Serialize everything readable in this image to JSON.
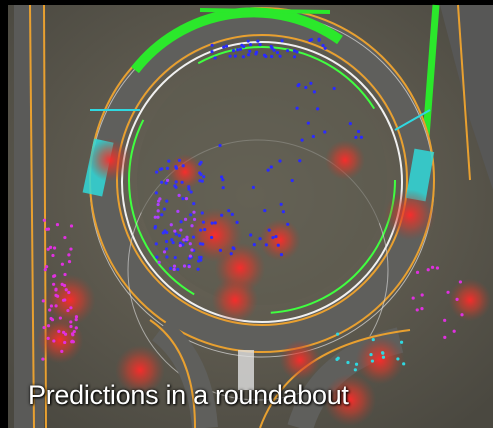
{
  "caption": "Predictions in a roundabout"
}
